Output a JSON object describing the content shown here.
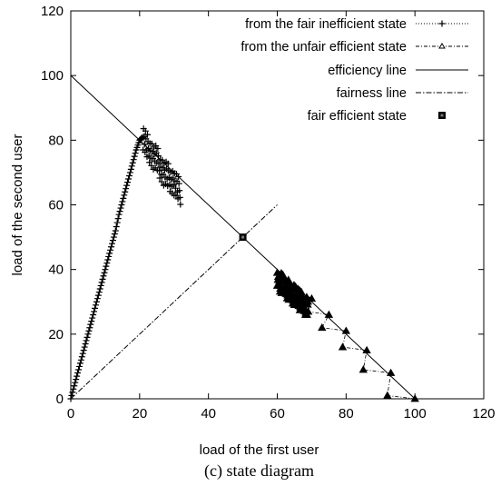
{
  "chart_data": {
    "type": "scatter",
    "caption": "(c) state diagram",
    "xlabel": "load of the first user",
    "ylabel": "load of the second user",
    "xlim": [
      0,
      120
    ],
    "ylim": [
      0,
      120
    ],
    "xticks": [
      0,
      20,
      40,
      60,
      80,
      100,
      120
    ],
    "yticks": [
      0,
      20,
      40,
      60,
      80,
      100,
      120
    ],
    "grid": false,
    "legend_position": "top-right",
    "series": [
      {
        "name": "from the fair inefficient state",
        "style": "dotted-plus",
        "x": [
          0,
          1,
          2,
          3,
          4,
          5,
          6,
          7,
          8,
          9,
          10,
          11,
          12,
          13,
          14,
          15,
          16,
          17,
          18,
          19,
          20,
          21,
          22,
          23,
          24,
          25,
          26,
          27,
          28,
          29,
          30,
          31,
          32
        ],
        "y": [
          0,
          4,
          8,
          12,
          16,
          20,
          24,
          28,
          32,
          36,
          40,
          44,
          48,
          52,
          57,
          61,
          65,
          69,
          73,
          77,
          80,
          81,
          78,
          77,
          75,
          74,
          72,
          70,
          69,
          68,
          67,
          65,
          64
        ]
      },
      {
        "name": "from the unfair efficient state",
        "style": "dashdot-triangle",
        "x": [
          100,
          92,
          93,
          85,
          86,
          79,
          80,
          73,
          75,
          69,
          70,
          67,
          66,
          64,
          63,
          62,
          61,
          60
        ],
        "y": [
          0,
          1,
          8,
          9,
          15,
          16,
          21,
          22,
          26,
          27,
          31,
          33,
          34,
          35,
          36,
          37,
          38,
          35
        ],
        "cluster": {
          "x": [
            60,
            69
          ],
          "y": [
            26,
            39
          ]
        }
      },
      {
        "name": "efficiency line",
        "style": "solid",
        "x": [
          0,
          100
        ],
        "y": [
          100,
          0
        ]
      },
      {
        "name": "fairness line",
        "style": "dashdot",
        "x": [
          0,
          60
        ],
        "y": [
          0,
          60
        ]
      },
      {
        "name": "fair efficient state",
        "style": "square-marker",
        "x": [
          50
        ],
        "y": [
          50
        ]
      }
    ]
  }
}
